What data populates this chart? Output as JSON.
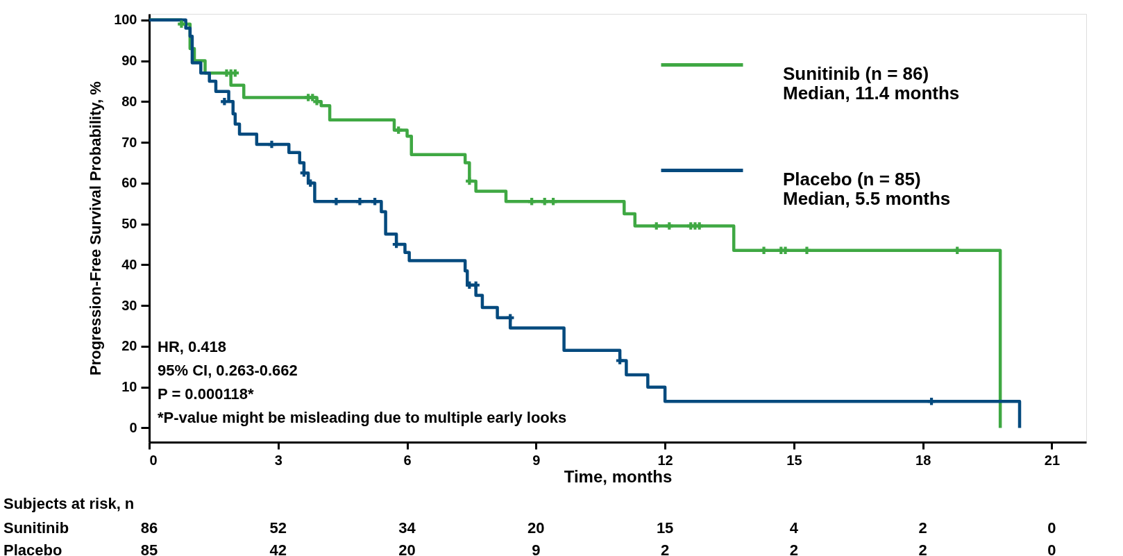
{
  "chart_data": {
    "type": "step",
    "xlabel": "Time, months",
    "ylabel": "Progression-Free Survival Probability, %",
    "xlim": [
      0,
      21.8
    ],
    "ylim": [
      -3.5,
      101.5
    ],
    "xticks": [
      0,
      3,
      6,
      9,
      12,
      15,
      18,
      21
    ],
    "yticks": [
      0,
      10,
      20,
      30,
      40,
      50,
      60,
      70,
      80,
      90,
      100
    ],
    "grid": false,
    "legend": "top right",
    "line_style": "solid",
    "series": [
      {
        "name": "Sunitinib (n = 86)\nMedian, 11.4 months",
        "color": "#3fa843",
        "x": [
          0,
          0.75,
          0.95,
          1.05,
          1.3,
          1.9,
          2.2,
          3.9,
          4.0,
          4.2,
          5.7,
          6.0,
          6.1,
          7.35,
          7.45,
          7.6,
          8.3,
          11.05,
          11.3,
          13.6,
          19.8,
          19.8
        ],
        "values": [
          100,
          99,
          93,
          90,
          87,
          84,
          81,
          80,
          79,
          75.5,
          73,
          71.5,
          67,
          65,
          60.5,
          58,
          55.5,
          52.5,
          49.5,
          43.5,
          43.5,
          0
        ]
      },
      {
        "name": "Placebo (n = 85)\nMedian, 5.5 months",
        "color": "#044a7e",
        "x": [
          0,
          0.85,
          0.95,
          1.0,
          1.2,
          1.4,
          1.55,
          1.85,
          1.95,
          2.0,
          2.1,
          2.5,
          3.25,
          3.5,
          3.6,
          3.7,
          3.85,
          5.4,
          5.5,
          5.75,
          5.95,
          6.05,
          7.35,
          7.4,
          7.6,
          7.75,
          8.1,
          8.4,
          9.65,
          10.95,
          11.1,
          11.6,
          12.0,
          20.25,
          20.25
        ],
        "values": [
          100,
          98,
          96,
          89.5,
          87,
          85,
          82.5,
          80,
          77,
          74.5,
          72,
          69.5,
          67.5,
          65,
          62.5,
          60,
          55.5,
          53,
          47.5,
          45,
          43,
          41,
          38.5,
          35,
          32.5,
          29.5,
          27,
          24.5,
          19,
          16.5,
          13,
          10,
          6.5,
          6.5,
          0
        ]
      },
      {
        "type": "scatter",
        "marker": "cross",
        "color": "#3fa843",
        "x": [
          0.75,
          1.8,
          1.9,
          2.0,
          3.7,
          3.8,
          3.9,
          5.8,
          7.45,
          8.9,
          9.2,
          9.4,
          11.8,
          12.1,
          12.6,
          12.7,
          12.8,
          14.3,
          14.7,
          14.8,
          15.3,
          18.8
        ],
        "values": [
          99,
          87,
          87,
          87,
          81,
          81,
          80,
          73,
          60.5,
          55.5,
          55.5,
          55.5,
          49.5,
          49.5,
          49.5,
          49.5,
          49.5,
          43.5,
          43.5,
          43.5,
          43.5,
          43.5
        ]
      },
      {
        "type": "scatter",
        "marker": "cross",
        "color": "#044a7e",
        "x": [
          1.75,
          2.85,
          3.6,
          3.75,
          4.35,
          4.9,
          5.25,
          5.75,
          7.45,
          7.6,
          8.4,
          10.95,
          18.2
        ],
        "values": [
          80,
          69.5,
          62.5,
          60,
          55.5,
          55.5,
          55.5,
          45,
          35,
          35,
          27,
          16.5,
          6.5
        ]
      }
    ],
    "annotations": [
      "HR, 0.418",
      "95% CI, 0.263-0.662",
      "P = 0.000118*",
      "*P-value might be misleading due to multiple early looks",
      "Subjects at risk, n",
      "Sunitinib",
      "86",
      "52",
      "34",
      "20",
      "15",
      "4",
      "2",
      "0",
      "Placebo",
      "85",
      "42",
      "20",
      "9",
      "2",
      "2",
      "2",
      "0"
    ]
  }
}
